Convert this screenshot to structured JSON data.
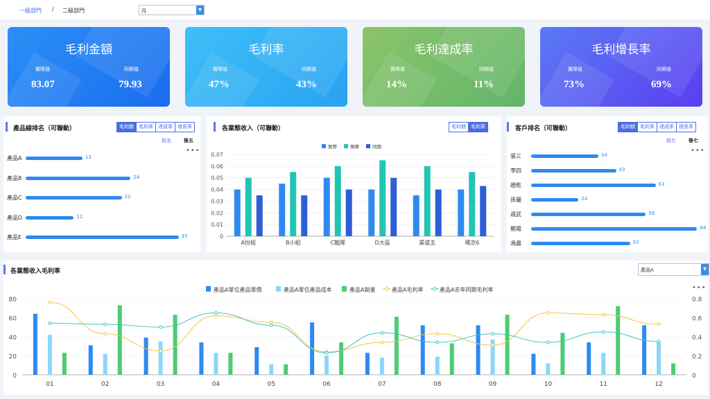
{
  "breadcrumb": {
    "level1": "一級部門",
    "separator": "/",
    "level2": "二級部門"
  },
  "period_select": {
    "value": "月"
  },
  "kpis": [
    {
      "title": "毛利金額",
      "actual_label": "實際值",
      "prior_label": "同期值",
      "actual": "83.07",
      "prior": "79.93",
      "color1": "#2b8ff5",
      "color2": "#1a6cf0"
    },
    {
      "title": "毛利率",
      "actual_label": "實際值",
      "prior_label": "同期值",
      "actual": "47%",
      "prior": "43%",
      "color1": "#3dbff7",
      "color2": "#29a2f2"
    },
    {
      "title": "毛利達成率",
      "actual_label": "實際值",
      "prior_label": "同期值",
      "actual": "14%",
      "prior": "11%",
      "color1": "#8cc46a",
      "color2": "#62b56b"
    },
    {
      "title": "毛利增長率",
      "actual_label": "實際值",
      "prior_label": "同期值",
      "actual": "73%",
      "prior": "69%",
      "color1": "#5a7af5",
      "color2": "#5a3ef0"
    }
  ],
  "product_rank": {
    "title": "產品線排名（可聯動）",
    "tabs": [
      "毛利額",
      "毛利率",
      "達成率",
      "增長率"
    ],
    "links": [
      "前五",
      "後五"
    ],
    "menu": "•••",
    "items": [
      {
        "name": "產品A",
        "value": 13
      },
      {
        "name": "產品B",
        "value": 24
      },
      {
        "name": "產品C",
        "value": 22
      },
      {
        "name": "產品D",
        "value": 11
      },
      {
        "name": "產品E",
        "value": 35
      }
    ]
  },
  "business_income": {
    "title": "各業態收入（可聯動）",
    "tabs": [
      "毛利額",
      "毛利率"
    ]
  },
  "customer_rank": {
    "title": "客戶排名（可聯動）",
    "tabs": [
      "毛利額",
      "毛利率",
      "達成率",
      "增長率"
    ],
    "links": [
      "前七",
      "後七"
    ],
    "menu": "•••",
    "items": [
      {
        "name": "張三",
        "value": 34
      },
      {
        "name": "李四",
        "value": 43
      },
      {
        "name": "趙乾",
        "value": 63
      },
      {
        "name": "孫儷",
        "value": 24
      },
      {
        "name": "週武",
        "value": 58
      },
      {
        "name": "鄭陽",
        "value": 84
      },
      {
        "name": "馮晨",
        "value": 50
      }
    ]
  },
  "margin_section": {
    "title": "各業態收入毛利率",
    "select_value": "產品A",
    "menu": "•••"
  },
  "chart_data": [
    {
      "type": "bar",
      "title": "",
      "categories": [
        "A份組",
        "B小組",
        "C戰隊",
        "D大區",
        "渠道五",
        "場次6"
      ],
      "series": [
        {
          "name": "實際",
          "color": "#2e8af0",
          "values": [
            0.04,
            0.045,
            0.05,
            0.04,
            0.035,
            0.04
          ]
        },
        {
          "name": "預算",
          "color": "#22c4b4",
          "values": [
            0.05,
            0.055,
            0.06,
            0.065,
            0.06,
            0.055
          ]
        },
        {
          "name": "同期",
          "color": "#2f5fd6",
          "values": [
            0.035,
            0.035,
            0.04,
            0.05,
            0.04,
            0.043
          ]
        }
      ],
      "ylim": [
        0,
        0.07
      ],
      "yticks": [
        "0",
        "0.01",
        "0.02",
        "0.03",
        "0.04",
        "0.05",
        "0.06",
        "0.07"
      ]
    },
    {
      "type": "bar",
      "title": "",
      "categories": [
        "01",
        "02",
        "03",
        "04",
        "05",
        "06",
        "07",
        "08",
        "09",
        "10",
        "11",
        "12"
      ],
      "series": [
        {
          "name": "產品A單位產品單價",
          "kind": "bar",
          "color": "#2e8af0",
          "values": [
            64,
            31,
            39,
            34,
            29,
            55,
            23,
            52,
            52,
            22,
            34,
            52
          ]
        },
        {
          "name": "產品A單位產品成本",
          "kind": "bar",
          "color": "#8cd6fb",
          "values": [
            42,
            22,
            35,
            23,
            11,
            20,
            18,
            19,
            37,
            12,
            23,
            34
          ]
        },
        {
          "name": "產品A銷量",
          "kind": "bar",
          "color": "#4ecb73",
          "values": [
            23,
            73,
            63,
            23,
            11,
            34,
            61,
            33,
            63,
            44,
            72,
            12
          ]
        },
        {
          "name": "產品A毛利率",
          "kind": "line",
          "color": "#f5c443",
          "values": [
            0.76,
            0.43,
            0.25,
            0.62,
            0.55,
            0.24,
            0.34,
            0.43,
            0.31,
            0.65,
            0.63,
            0.53
          ]
        },
        {
          "name": "產品A去年同期毛利率",
          "kind": "line",
          "color": "#36c6c0",
          "values": [
            0.54,
            0.53,
            0.5,
            0.65,
            0.52,
            0.23,
            0.44,
            0.34,
            0.43,
            0.34,
            0.45,
            0.35
          ]
        }
      ],
      "ylim": [
        0,
        80
      ],
      "y2lim": [
        0,
        0.8
      ],
      "yticks": [
        "0",
        "20",
        "40",
        "60",
        "80"
      ],
      "y2ticks": [
        "0",
        "0.2",
        "0.4",
        "0.6",
        "0.8"
      ]
    }
  ]
}
